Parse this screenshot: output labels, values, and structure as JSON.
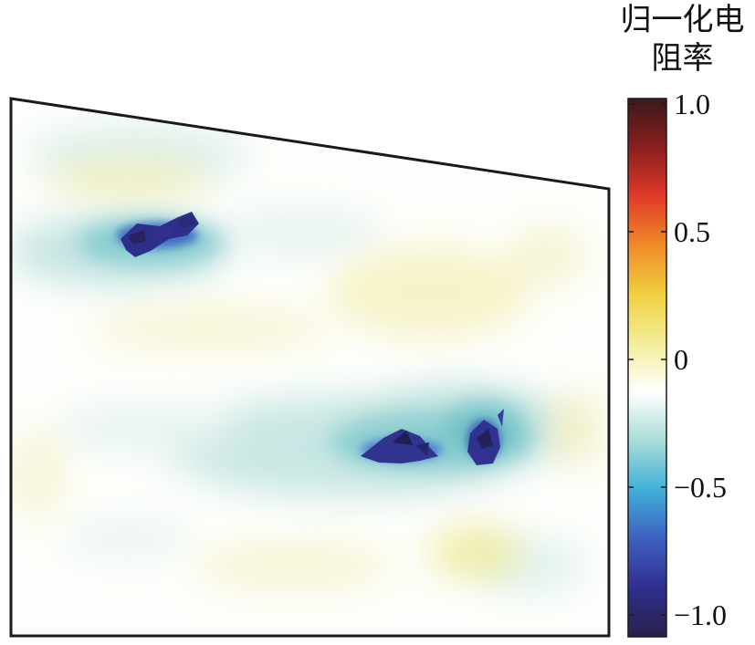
{
  "chart_data": {
    "type": "heatmap",
    "description_colorbar_label_line1": "归一化电",
    "description_colorbar_label_line2": "阻率",
    "colorbar": {
      "min": -1.0,
      "max": 1.0,
      "ticks": [
        {
          "value": 1.0,
          "label": "1.0"
        },
        {
          "value": 0.5,
          "label": "0.5"
        },
        {
          "value": 0.0,
          "label": "0"
        },
        {
          "value": -0.5,
          "label": "−0.5"
        },
        {
          "value": -1.0,
          "label": "−1.0"
        }
      ],
      "colormap": [
        "#2a1f4a",
        "#2f2f8f",
        "#3f5fc0",
        "#3fb0d8",
        "#a8dcd8",
        "#ffffff",
        "#f3ee9a",
        "#f0d040",
        "#f08a28",
        "#e03a28",
        "#8a1e1e",
        "#3a1a1a"
      ]
    },
    "anomalies": [
      {
        "name": "",
        "value": -1.0
      },
      {
        "name": "",
        "value": -0.9
      },
      {
        "name": "",
        "value": -0.8
      }
    ]
  }
}
